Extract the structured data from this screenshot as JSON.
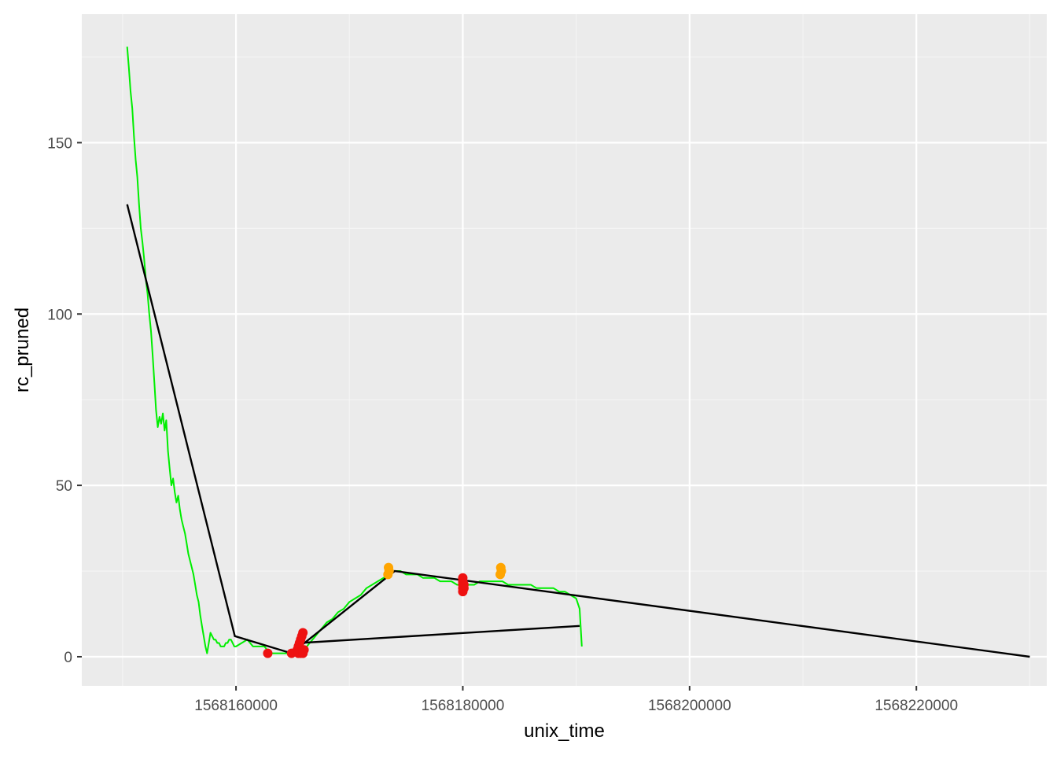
{
  "chart_data": {
    "type": "line",
    "title": "",
    "xlabel": "unix_time",
    "ylabel": "rc_pruned",
    "xlim": [
      1568146400,
      1568231500
    ],
    "ylim": [
      -8.5,
      187.5
    ],
    "x_ticks": [
      1568160000,
      1568180000,
      1568200000,
      1568220000
    ],
    "x_tick_labels": [
      "1568160000",
      "1568180000",
      "1568200000",
      "1568220000"
    ],
    "y_ticks": [
      0,
      50,
      100,
      150
    ],
    "y_tick_labels": [
      "0",
      "50",
      "100",
      "150"
    ],
    "grid": true,
    "legend": "none",
    "colors": {
      "panel": "#ebebeb",
      "grid_major": "#ffffff",
      "grid_minor": "#f5f5f5",
      "series_line": "#00ee00",
      "trend_line": "#000000",
      "point_red": "#ee1111",
      "point_orange": "#ffa500"
    },
    "series": [
      {
        "type": "line",
        "color": "#00ee00",
        "x": [
          1568150400,
          1568150550,
          1568150700,
          1568150850,
          1568151000,
          1568151150,
          1568151300,
          1568151450,
          1568151600,
          1568151750,
          1568151900,
          1568152050,
          1568152200,
          1568152350,
          1568152500,
          1568152650,
          1568152800,
          1568152950,
          1568153100,
          1568153250,
          1568153400,
          1568153550,
          1568153700,
          1568153850,
          1568154000,
          1568154150,
          1568154300,
          1568154450,
          1568154600,
          1568154750,
          1568154900,
          1568155050,
          1568155200,
          1568155350,
          1568155500,
          1568155650,
          1568155800,
          1568155950,
          1568156100,
          1568156250,
          1568156400,
          1568156550,
          1568156700,
          1568156850,
          1568157000,
          1568157150,
          1568157300,
          1568157450,
          1568157600,
          1568157750,
          1568157900,
          1568158050,
          1568158200,
          1568158350,
          1568158500,
          1568158650,
          1568158800,
          1568158950,
          1568159100,
          1568159250,
          1568159400,
          1568159550,
          1568159700,
          1568159850,
          1568160000,
          1568160500,
          1568161000,
          1568161500,
          1568162000,
          1568162500,
          1568163000,
          1568163500,
          1568164000,
          1568164500,
          1568165000,
          1568165500,
          1568166000,
          1568166500,
          1568167000,
          1568167500,
          1568168000,
          1568168500,
          1568169000,
          1568169500,
          1568170000,
          1568170500,
          1568171000,
          1568171500,
          1568172000,
          1568172500,
          1568173000,
          1568173500,
          1568174000,
          1568174500,
          1568175000,
          1568175500,
          1568176000,
          1568176500,
          1568177000,
          1568177500,
          1568178000,
          1568178500,
          1568179000,
          1568179500,
          1568180000,
          1568180500,
          1568181000,
          1568181500,
          1568182000,
          1568182500,
          1568183000,
          1568183500,
          1568184000,
          1568184500,
          1568185000,
          1568185500,
          1568186000,
          1568186500,
          1568187000,
          1568187500,
          1568188000,
          1568188500,
          1568189000,
          1568189500,
          1568190000,
          1568190300,
          1568190500
        ],
        "y": [
          178,
          172,
          165,
          160,
          152,
          145,
          140,
          132,
          125,
          121,
          116,
          110,
          106,
          100,
          95,
          88,
          80,
          72,
          67,
          70,
          68,
          71,
          66,
          69,
          60,
          55,
          50,
          52,
          48,
          45,
          47,
          43,
          40,
          38,
          36,
          33,
          30,
          28,
          26,
          24,
          21,
          18,
          16,
          12,
          9,
          6,
          3,
          1,
          4,
          7,
          6,
          5,
          5,
          4,
          4,
          3,
          3,
          3,
          4,
          4,
          5,
          5,
          4,
          3,
          3,
          4,
          5,
          3,
          3,
          3,
          1,
          1,
          1,
          1,
          1,
          1,
          2,
          4,
          6,
          8,
          10,
          11,
          13,
          14,
          16,
          17,
          18,
          20,
          21,
          22,
          23,
          24,
          25,
          25,
          24,
          24,
          24,
          23,
          23,
          23,
          22,
          22,
          22,
          21,
          21,
          21,
          21,
          22,
          22,
          22,
          22,
          22,
          21,
          21,
          21,
          21,
          21,
          20,
          20,
          20,
          20,
          19,
          19,
          18,
          17,
          14,
          3
        ]
      },
      {
        "type": "segments",
        "color": "#000000",
        "x": [
          1568150400,
          1568159900,
          1568164900,
          1568174000,
          1568230000
        ],
        "y": [
          132,
          6,
          1,
          25,
          0
        ]
      },
      {
        "type": "segments",
        "color": "#000000",
        "x": [
          1568165600,
          1568190300
        ],
        "y": [
          4,
          9
        ]
      },
      {
        "type": "scatter",
        "color": "#ee1111",
        "x": [
          1568162800,
          1568164900,
          1568165400,
          1568165500,
          1568165600,
          1568165700,
          1568165800,
          1568165900,
          1568166000,
          1568165500,
          1568165700,
          1568165900,
          1568180000,
          1568180000,
          1568180000,
          1568180000,
          1568180000,
          1568180000,
          1568180100,
          1568180100
        ],
        "y": [
          1,
          1,
          2,
          3,
          4,
          5,
          6,
          7,
          2,
          1,
          1,
          1,
          19,
          20,
          21,
          22,
          23,
          22,
          20,
          21
        ]
      },
      {
        "type": "scatter",
        "color": "#ffa500",
        "x": [
          1568173400,
          1568173500,
          1568173450,
          1568183300,
          1568183400,
          1568183350
        ],
        "y": [
          24,
          25,
          26,
          24,
          25,
          26
        ]
      }
    ]
  }
}
